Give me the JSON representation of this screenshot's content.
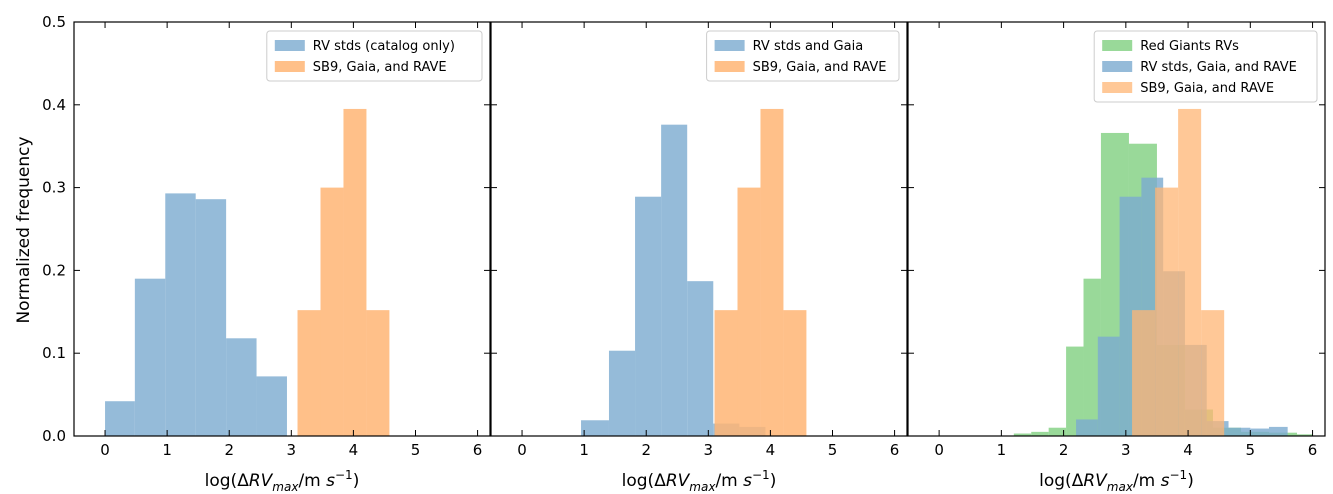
{
  "figure": {
    "ylabel": "Normalized frequency",
    "xlabel_prefix": "log(",
    "xlabel_delta": "Δ",
    "xlabel_rv": "RV",
    "xlabel_sub": "max",
    "xlabel_unit": "/m ",
    "xlabel_s": "s",
    "xlabel_exp": "−1",
    "xlabel_close": ")"
  },
  "colors": {
    "blue": "#7aaad0",
    "orange": "#ffb574",
    "green": "#7fcf7f",
    "axis": "#000000",
    "legend_border": "#cccccc"
  },
  "chart_data": [
    {
      "type": "bar",
      "title": "",
      "xlim": [
        -0.5,
        6.2
      ],
      "ylim": [
        0,
        0.5
      ],
      "xticks": [
        0,
        1,
        2,
        3,
        4,
        5,
        6
      ],
      "yticks": [
        0.0,
        0.1,
        0.2,
        0.3,
        0.4,
        0.5
      ],
      "ytick_labels": [
        "0.0",
        "0.1",
        "0.2",
        "0.3",
        "0.4",
        "0.5"
      ],
      "legend_position": "top-right",
      "series": [
        {
          "name": "RV stds (catalog only)",
          "color": "blue",
          "opacity": 0.8,
          "bins": [
            {
              "x0": 0.0,
              "x1": 0.48,
              "y": 0.042
            },
            {
              "x0": 0.48,
              "x1": 0.97,
              "y": 0.19
            },
            {
              "x0": 0.97,
              "x1": 1.46,
              "y": 0.293
            },
            {
              "x0": 1.46,
              "x1": 1.95,
              "y": 0.286
            },
            {
              "x0": 1.95,
              "x1": 2.44,
              "y": 0.118
            },
            {
              "x0": 2.44,
              "x1": 2.93,
              "y": 0.072
            }
          ]
        },
        {
          "name": "SB9, Gaia, and RAVE",
          "color": "orange",
          "opacity": 0.85,
          "bins": [
            {
              "x0": 3.1,
              "x1": 3.47,
              "y": 0.152
            },
            {
              "x0": 3.47,
              "x1": 3.84,
              "y": 0.3
            },
            {
              "x0": 3.84,
              "x1": 4.21,
              "y": 0.395
            },
            {
              "x0": 4.21,
              "x1": 4.58,
              "y": 0.152
            }
          ]
        }
      ]
    },
    {
      "type": "bar",
      "title": "",
      "xlim": [
        -0.5,
        6.2
      ],
      "ylim": [
        0,
        0.5
      ],
      "xticks": [
        0,
        1,
        2,
        3,
        4,
        5,
        6
      ],
      "yticks": [
        0.0,
        0.1,
        0.2,
        0.3,
        0.4,
        0.5
      ],
      "legend_position": "top-right",
      "series": [
        {
          "name": "RV stds and Gaia",
          "color": "blue",
          "opacity": 0.8,
          "bins": [
            {
              "x0": -0.45,
              "x1": 0.95,
              "y": 0.0
            },
            {
              "x0": 0.95,
              "x1": 1.4,
              "y": 0.019
            },
            {
              "x0": 1.4,
              "x1": 1.82,
              "y": 0.103
            },
            {
              "x0": 1.82,
              "x1": 2.24,
              "y": 0.289
            },
            {
              "x0": 2.24,
              "x1": 2.66,
              "y": 0.376
            },
            {
              "x0": 2.66,
              "x1": 3.08,
              "y": 0.187
            },
            {
              "x0": 3.08,
              "x1": 3.5,
              "y": 0.015
            },
            {
              "x0": 3.5,
              "x1": 3.92,
              "y": 0.011
            },
            {
              "x0": 3.92,
              "x1": 6.1,
              "y": 0.0
            }
          ]
        },
        {
          "name": "SB9, Gaia, and RAVE",
          "color": "orange",
          "opacity": 0.85,
          "bins": [
            {
              "x0": 3.1,
              "x1": 3.47,
              "y": 0.152
            },
            {
              "x0": 3.47,
              "x1": 3.84,
              "y": 0.3
            },
            {
              "x0": 3.84,
              "x1": 4.21,
              "y": 0.395
            },
            {
              "x0": 4.21,
              "x1": 4.58,
              "y": 0.152
            }
          ]
        }
      ]
    },
    {
      "type": "bar",
      "title": "",
      "xlim": [
        -0.5,
        6.2
      ],
      "ylim": [
        0,
        0.5
      ],
      "xticks": [
        0,
        1,
        2,
        3,
        4,
        5,
        6
      ],
      "yticks": [
        0.0,
        0.1,
        0.2,
        0.3,
        0.4,
        0.5
      ],
      "legend_position": "top-right",
      "series": [
        {
          "name": "Red Giants RVs",
          "color": "green",
          "opacity": 0.8,
          "bins": [
            {
              "x0": 1.2,
              "x1": 1.48,
              "y": 0.003
            },
            {
              "x0": 1.48,
              "x1": 1.76,
              "y": 0.005
            },
            {
              "x0": 1.76,
              "x1": 2.04,
              "y": 0.01
            },
            {
              "x0": 2.04,
              "x1": 2.32,
              "y": 0.108
            },
            {
              "x0": 2.32,
              "x1": 2.6,
              "y": 0.19
            },
            {
              "x0": 2.6,
              "x1": 3.05,
              "y": 0.366
            },
            {
              "x0": 3.05,
              "x1": 3.5,
              "y": 0.353
            },
            {
              "x0": 3.5,
              "x1": 3.95,
              "y": 0.11
            },
            {
              "x0": 3.95,
              "x1": 4.4,
              "y": 0.032
            },
            {
              "x0": 4.4,
              "x1": 4.85,
              "y": 0.01
            },
            {
              "x0": 4.85,
              "x1": 5.3,
              "y": 0.005
            },
            {
              "x0": 5.3,
              "x1": 5.75,
              "y": 0.004
            },
            {
              "x0": 5.75,
              "x1": 6.0,
              "y": 0.002
            }
          ]
        },
        {
          "name": "RV stds, Gaia, and RAVE",
          "color": "blue",
          "opacity": 0.8,
          "bins": [
            {
              "x0": 2.2,
              "x1": 2.55,
              "y": 0.02
            },
            {
              "x0": 2.55,
              "x1": 2.9,
              "y": 0.12
            },
            {
              "x0": 2.9,
              "x1": 3.25,
              "y": 0.289
            },
            {
              "x0": 3.25,
              "x1": 3.6,
              "y": 0.312
            },
            {
              "x0": 3.6,
              "x1": 3.95,
              "y": 0.199
            },
            {
              "x0": 3.95,
              "x1": 4.3,
              "y": 0.11
            },
            {
              "x0": 4.3,
              "x1": 4.65,
              "y": 0.018
            },
            {
              "x0": 4.65,
              "x1": 5.0,
              "y": 0.01
            },
            {
              "x0": 5.0,
              "x1": 5.3,
              "y": 0.009
            },
            {
              "x0": 5.3,
              "x1": 5.6,
              "y": 0.011
            }
          ]
        },
        {
          "name": "SB9, Gaia, and RAVE",
          "color": "orange",
          "opacity": 0.75,
          "bins": [
            {
              "x0": 3.1,
              "x1": 3.47,
              "y": 0.152
            },
            {
              "x0": 3.47,
              "x1": 3.84,
              "y": 0.3
            },
            {
              "x0": 3.84,
              "x1": 4.21,
              "y": 0.395
            },
            {
              "x0": 4.21,
              "x1": 4.58,
              "y": 0.152
            }
          ]
        }
      ]
    }
  ]
}
